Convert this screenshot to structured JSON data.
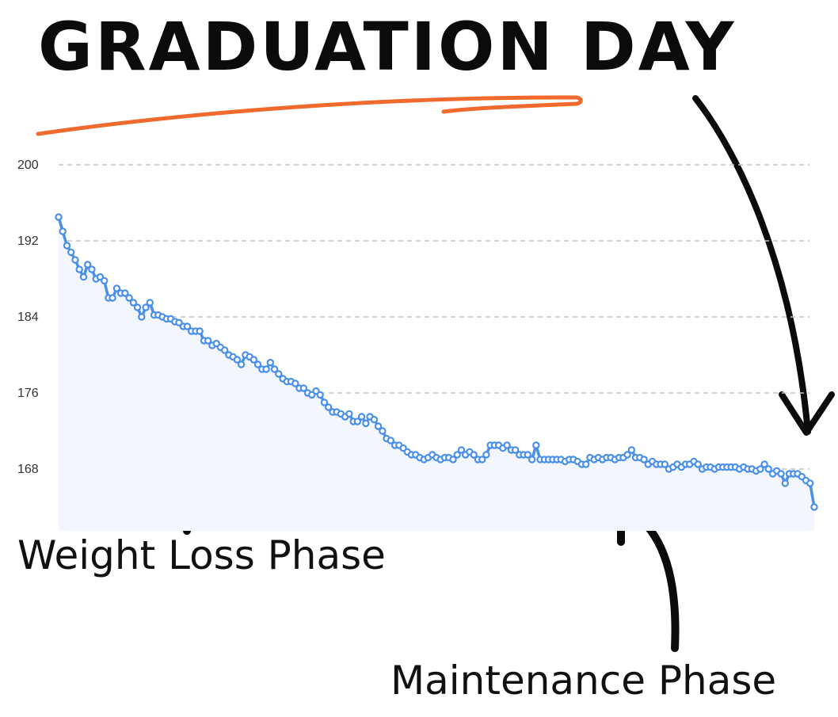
{
  "title": "GRADUATION DAY",
  "annotations": {
    "weight_loss": "Weight Loss Phase",
    "maintenance": "Maintenance Phase"
  },
  "colors": {
    "line": "#4a90e8",
    "area": "#f3f6fd",
    "grid": "#c4c4c4",
    "underline": "#f06a2e",
    "ink": "#0b0b0b"
  },
  "chart_data": {
    "type": "line",
    "title": "GRADUATION DAY",
    "xlabel": "",
    "ylabel": "",
    "ylim": [
      162,
      200
    ],
    "yticks": [
      168,
      176,
      184,
      192,
      200
    ],
    "grid": true,
    "legend": "none",
    "series": [
      {
        "values": [
          194.5,
          193,
          191.5,
          190.8,
          190,
          189,
          188.2,
          189.5,
          189,
          188,
          188.2,
          187.8,
          186,
          186,
          187,
          186.5,
          186.5,
          186,
          185.5,
          185,
          184,
          185,
          185.5,
          184.2,
          184.2,
          184,
          183.8,
          183.8,
          183.5,
          183.4,
          183,
          183,
          182.5,
          182.5,
          182.5,
          181.5,
          181.5,
          181,
          181.2,
          180.8,
          180.5,
          180,
          179.8,
          179.5,
          179,
          180,
          179.8,
          179.5,
          179,
          178.5,
          178.5,
          179.2,
          178.5,
          178,
          177.5,
          177.2,
          177.2,
          177,
          176.5,
          176.5,
          176,
          175.8,
          176.2,
          175.8,
          175,
          174.5,
          174,
          174,
          173.8,
          173.5,
          173.8,
          173,
          173,
          173.5,
          172.8,
          173.5,
          173.2,
          172.5,
          172,
          171.2,
          171,
          170.5,
          170.5,
          170.2,
          169.8,
          169.5,
          169.5,
          169.2,
          169,
          169.2,
          169.5,
          169.2,
          169,
          169.2,
          169.2,
          169,
          169.5,
          170,
          169.5,
          169.8,
          169.5,
          169,
          169,
          169.5,
          170.5,
          170.5,
          170.5,
          170.2,
          170.5,
          170,
          170,
          169.5,
          169.5,
          169.5,
          169,
          170.5,
          169,
          169,
          169,
          169,
          169,
          169,
          168.8,
          169,
          169,
          168.8,
          168.5,
          168.5,
          169.2,
          169,
          169.2,
          169,
          169.2,
          169.2,
          169,
          169.2,
          169.2,
          169.5,
          170,
          169.2,
          169.2,
          169,
          168.5,
          168.8,
          168.5,
          168.5,
          168.5,
          168,
          168.2,
          168.5,
          168.2,
          168.5,
          168.5,
          168.8,
          168.5,
          168,
          168.2,
          168.2,
          168,
          168.2,
          168.2,
          168.2,
          168.2,
          168.2,
          168,
          168.2,
          168,
          168,
          167.8,
          168,
          168.5,
          168,
          167.5,
          167.8,
          167.5,
          166.5,
          167.5,
          167.5,
          167.5,
          167.2,
          166.8,
          166.5,
          164
        ]
      }
    ]
  }
}
